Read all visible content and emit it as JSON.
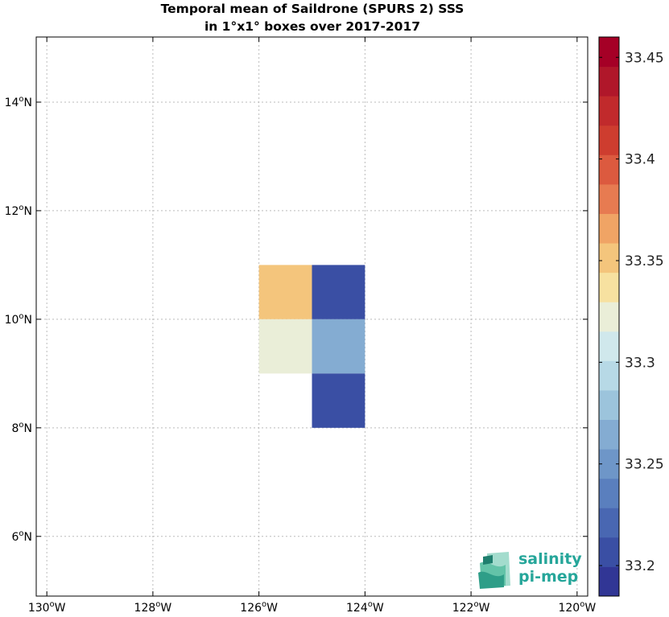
{
  "chart_data": {
    "type": "heatmap",
    "title": "Temporal mean of Saildrone (SPURS 2) SSS",
    "subtitle": "in 1°x1° boxes over 2017-2017",
    "xlim": [
      -130.2,
      -119.8
    ],
    "ylim": [
      4.9,
      15.2
    ],
    "x_ticks": [
      {
        "value": -130,
        "label": "130°W"
      },
      {
        "value": -128,
        "label": "128°W"
      },
      {
        "value": -126,
        "label": "126°W"
      },
      {
        "value": -124,
        "label": "124°W"
      },
      {
        "value": -122,
        "label": "122°W"
      },
      {
        "value": -120,
        "label": "120°W"
      }
    ],
    "y_ticks": [
      {
        "value": 6,
        "label": "6°N"
      },
      {
        "value": 8,
        "label": "8°N"
      },
      {
        "value": 10,
        "label": "10°N"
      },
      {
        "value": 12,
        "label": "12°N"
      },
      {
        "value": 14,
        "label": "14°N"
      }
    ],
    "grid": true,
    "cells": [
      {
        "lon_min": -126,
        "lon_max": -125,
        "lat_min": 10,
        "lat_max": 11,
        "value": 33.35
      },
      {
        "lon_min": -125,
        "lon_max": -124,
        "lat_min": 10,
        "lat_max": 11,
        "value": 33.2
      },
      {
        "lon_min": -126,
        "lon_max": -125,
        "lat_min": 9,
        "lat_max": 10,
        "value": 33.32
      },
      {
        "lon_min": -125,
        "lon_max": -124,
        "lat_min": 9,
        "lat_max": 10,
        "value": 33.27
      },
      {
        "lon_min": -125,
        "lon_max": -124,
        "lat_min": 8,
        "lat_max": 9,
        "value": 33.2
      }
    ],
    "colorbar": {
      "min": 33.185,
      "max": 33.46,
      "colors": [
        "#313695",
        "#3a4fa4",
        "#4967b2",
        "#5a7fbe",
        "#6e96c8",
        "#84acd2",
        "#9cc4dc",
        "#b7d9e6",
        "#d0e8ec",
        "#eaeed8",
        "#f7e1a0",
        "#f4c57c",
        "#f0a465",
        "#e77b51",
        "#dc5a3f",
        "#ce3d2f",
        "#c12a2c",
        "#b0172a",
        "#a50026"
      ],
      "ticks": [
        {
          "value": 33.2,
          "label": "33.2"
        },
        {
          "value": 33.25,
          "label": "33.25"
        },
        {
          "value": 33.3,
          "label": "33.3"
        },
        {
          "value": 33.35,
          "label": "33.35"
        },
        {
          "value": 33.4,
          "label": "33.4"
        },
        {
          "value": 33.45,
          "label": "33.45"
        }
      ]
    }
  },
  "logo": {
    "line1": "salinity",
    "line2": "pi-mep"
  }
}
